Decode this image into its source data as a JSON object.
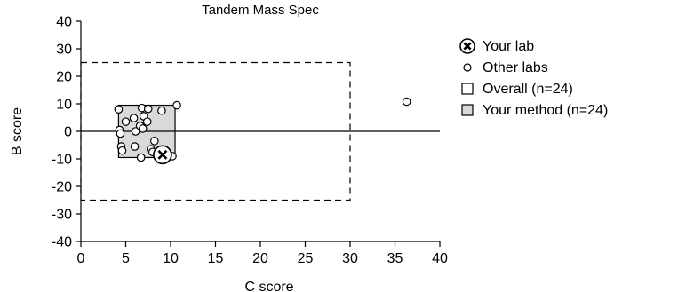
{
  "chart_data": {
    "type": "scatter",
    "title": "Tandem Mass Spec",
    "xlabel": "C score",
    "ylabel": "B score",
    "xlim": [
      0,
      40
    ],
    "ylim": [
      -40,
      40
    ],
    "x_ticks": [
      0,
      5,
      10,
      15,
      20,
      25,
      30,
      35,
      40
    ],
    "y_ticks": [
      -40,
      -30,
      -20,
      -10,
      0,
      10,
      20,
      30,
      40
    ],
    "grid": false,
    "legend_position": "right",
    "legend": {
      "your_lab": "Your lab",
      "other_labs": "Other labs",
      "overall": "Overall (n=24)",
      "your_method": "Your method (n=24)"
    },
    "your_lab": {
      "x": 9.1,
      "y": -8.5
    },
    "other_labs": [
      {
        "x": 4.2,
        "y": 8.0
      },
      {
        "x": 4.3,
        "y": 0.5
      },
      {
        "x": 4.4,
        "y": -0.8
      },
      {
        "x": 4.5,
        "y": -5.5
      },
      {
        "x": 4.6,
        "y": -7.0
      },
      {
        "x": 5.0,
        "y": 3.5
      },
      {
        "x": 5.9,
        "y": 4.8
      },
      {
        "x": 6.0,
        "y": -5.5
      },
      {
        "x": 6.1,
        "y": 0.0
      },
      {
        "x": 6.6,
        "y": 2.0
      },
      {
        "x": 6.7,
        "y": -9.5
      },
      {
        "x": 6.8,
        "y": 8.5
      },
      {
        "x": 6.9,
        "y": 1.0
      },
      {
        "x": 7.0,
        "y": 5.5
      },
      {
        "x": 7.4,
        "y": 3.5
      },
      {
        "x": 7.5,
        "y": 8.2
      },
      {
        "x": 7.8,
        "y": -6.5
      },
      {
        "x": 8.0,
        "y": -7.5
      },
      {
        "x": 8.2,
        "y": -3.5
      },
      {
        "x": 8.8,
        "y": -9.5
      },
      {
        "x": 9.0,
        "y": 7.5
      },
      {
        "x": 10.2,
        "y": -9.0
      },
      {
        "x": 10.7,
        "y": 9.5
      },
      {
        "x": 36.3,
        "y": 10.8
      }
    ],
    "overall_box": {
      "x_min": 0,
      "x_max": 30,
      "y_min": -25,
      "y_max": 25
    },
    "method_box": {
      "x_min": 4.2,
      "x_max": 10.5,
      "y_min": -9.5,
      "y_max": 9.5
    },
    "colors": {
      "method_fill": "#d9d9d9",
      "marker_fill": "#ffffff",
      "line": "#000000"
    }
  }
}
